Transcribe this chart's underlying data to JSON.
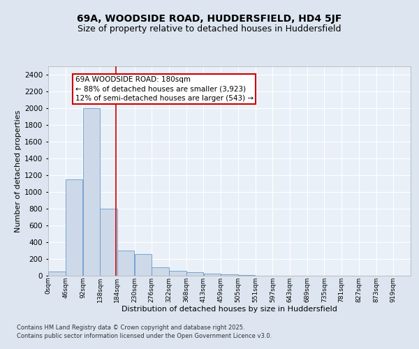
{
  "title1": "69A, WOODSIDE ROAD, HUDDERSFIELD, HD4 5JF",
  "title2": "Size of property relative to detached houses in Huddersfield",
  "xlabel": "Distribution of detached houses by size in Huddersfield",
  "ylabel": "Number of detached properties",
  "footnote1": "Contains HM Land Registry data © Crown copyright and database right 2025.",
  "footnote2": "Contains public sector information licensed under the Open Government Licence v3.0.",
  "annotation_title": "69A WOODSIDE ROAD: 180sqm",
  "annotation_line1": "← 88% of detached houses are smaller (3,923)",
  "annotation_line2": "12% of semi-detached houses are larger (543) →",
  "property_size": 180,
  "bar_labels": [
    "0sqm",
    "46sqm",
    "92sqm",
    "138sqm",
    "184sqm",
    "230sqm",
    "276sqm",
    "322sqm",
    "368sqm",
    "413sqm",
    "459sqm",
    "505sqm",
    "551sqm",
    "597sqm",
    "643sqm",
    "689sqm",
    "735sqm",
    "781sqm",
    "827sqm",
    "873sqm",
    "919sqm"
  ],
  "bar_values": [
    50,
    1150,
    2000,
    800,
    300,
    260,
    100,
    55,
    45,
    25,
    15,
    5,
    0,
    0,
    0,
    0,
    0,
    0,
    0,
    0,
    0
  ],
  "bar_color": "#cdd9e8",
  "bar_edge_color": "#6699cc",
  "vline_x": 180,
  "vline_color": "#cc0000",
  "annotation_box_color": "#cc0000",
  "ylim": [
    0,
    2500
  ],
  "yticks": [
    0,
    200,
    400,
    600,
    800,
    1000,
    1200,
    1400,
    1600,
    1800,
    2000,
    2200,
    2400
  ],
  "bg_color": "#dde6f0",
  "plot_bg_color": "#eaf0f7",
  "grid_color": "#ffffff",
  "title1_fontsize": 10,
  "title2_fontsize": 9,
  "xlabel_fontsize": 8,
  "ylabel_fontsize": 8,
  "annotation_fontsize": 7.5
}
